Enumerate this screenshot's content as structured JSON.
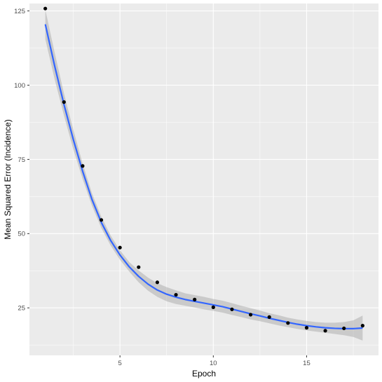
{
  "chart_data": {
    "type": "scatter",
    "title": "",
    "xlabel": "Epoch",
    "ylabel": "Mean Squared Error (Incidence)",
    "xlim": [
      0.15,
      18.85
    ],
    "ylim": [
      9.0,
      127.5
    ],
    "x_ticks": [
      5,
      10,
      15
    ],
    "x_tick_labels": [
      "5",
      "10",
      "15"
    ],
    "y_ticks": [
      25,
      50,
      75,
      100,
      125
    ],
    "y_tick_labels": [
      "25",
      "50",
      "75",
      "100",
      "125"
    ],
    "grid": true,
    "legend": "none",
    "points": {
      "x": [
        1,
        2,
        3,
        4,
        5,
        6,
        7,
        8,
        9,
        10,
        11,
        12,
        13,
        14,
        15,
        16,
        17,
        18
      ],
      "y": [
        125.8,
        94.3,
        72.8,
        54.6,
        45.3,
        38.7,
        33.6,
        29.4,
        27.8,
        25.2,
        24.5,
        22.7,
        21.9,
        19.9,
        18.3,
        17.3,
        18.1,
        19.0
      ]
    },
    "smooth": {
      "x": [
        1,
        1.5,
        2,
        2.5,
        3,
        3.5,
        4,
        4.5,
        5,
        5.5,
        6,
        6.5,
        7,
        7.5,
        8,
        8.5,
        9,
        9.5,
        10,
        10.5,
        11,
        11.5,
        12,
        12.5,
        13,
        13.5,
        14,
        14.5,
        15,
        15.5,
        16,
        16.5,
        17,
        17.5,
        18
      ],
      "y": [
        120.5,
        106.5,
        93.5,
        81.7,
        71.0,
        61.5,
        53.8,
        47.7,
        42.8,
        38.8,
        35.6,
        33.0,
        31.0,
        29.6,
        28.6,
        27.8,
        27.2,
        26.6,
        26.0,
        25.4,
        24.6,
        23.8,
        23.0,
        22.3,
        21.5,
        20.8,
        20.1,
        19.5,
        19.0,
        18.6,
        18.3,
        18.1,
        18.0,
        18.0,
        18.2
      ],
      "lower": [
        115.5,
        102.0,
        89.8,
        78.4,
        68.4,
        59.4,
        51.9,
        46.0,
        41.2,
        37.2,
        33.6,
        30.8,
        28.7,
        27.2,
        26.3,
        25.7,
        25.1,
        24.5,
        24.0,
        23.4,
        22.6,
        21.9,
        21.1,
        20.5,
        19.8,
        19.1,
        18.5,
        17.9,
        17.4,
        17.0,
        16.6,
        16.2,
        15.8,
        15.2,
        14.0
      ],
      "upper": [
        125.5,
        111.0,
        97.2,
        85.0,
        73.6,
        63.6,
        55.7,
        49.4,
        44.4,
        40.4,
        37.6,
        35.2,
        33.3,
        32.0,
        30.9,
        29.9,
        29.3,
        28.7,
        28.0,
        27.4,
        26.6,
        25.7,
        24.9,
        24.1,
        23.2,
        22.5,
        21.7,
        21.1,
        20.6,
        20.2,
        20.0,
        20.0,
        20.2,
        20.8,
        22.4
      ]
    },
    "colors": {
      "panel": "#ebebeb",
      "grid_major": "#ffffff",
      "points": "#000000",
      "smooth_line": "#3366ff",
      "ribbon": "#999999"
    }
  }
}
